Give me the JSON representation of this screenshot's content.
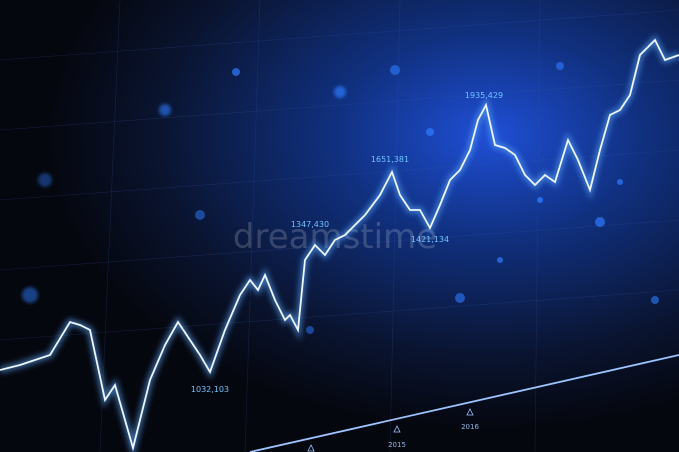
{
  "annotations": [
    "1935,429",
    "1651,381",
    "1347,430",
    "1421,134",
    "1032,103"
  ],
  "axis_labels": [
    "2015",
    "2016"
  ],
  "watermark": "dreamstime"
}
